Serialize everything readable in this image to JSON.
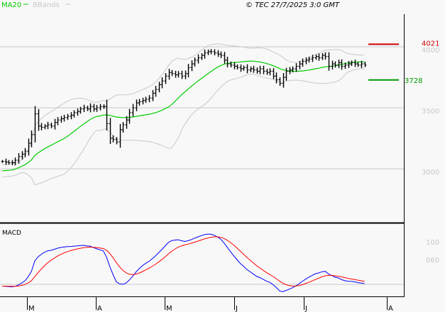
{
  "header": {
    "legend": [
      {
        "label": "MA20",
        "color": "#00cc00"
      },
      {
        "label": "BBands",
        "color": "#c8c8c8"
      }
    ],
    "copyright": "© TEC 27/7/2025 3:0 GMT"
  },
  "colors": {
    "bars": "#000000",
    "ma20": "#00cc00",
    "bbands": "#c8c8c8",
    "macd": "#0000ff",
    "signal": "#ff0000",
    "resistance": "#cc0000",
    "support": "#009900",
    "grid": "#c8c8c8"
  },
  "chart_data": [
    {
      "type": "bar",
      "subtype": "ohlc",
      "ylim": [
        28.5,
        42.5
      ],
      "yticks": [
        {
          "value": 30,
          "label": "3000"
        },
        {
          "value": 35,
          "label": "3500"
        },
        {
          "value": 40,
          "label": "4000"
        }
      ],
      "xticks": [
        "M",
        "A",
        "M",
        "J",
        "J",
        "A"
      ],
      "grid": true,
      "close": [
        30.6,
        30.55,
        30.5,
        30.5,
        30.7,
        31.0,
        31.2,
        31.45,
        32.1,
        32.8,
        34.5,
        33.5,
        33.4,
        33.5,
        33.6,
        33.5,
        33.8,
        34.0,
        34.1,
        34.2,
        34.3,
        34.4,
        34.6,
        34.7,
        34.9,
        35.0,
        34.9,
        35.1,
        34.9,
        35.0,
        35.1,
        35.1,
        33.7,
        32.5,
        32.4,
        32.2,
        33.2,
        33.6,
        34.0,
        34.6,
        35.0,
        35.4,
        35.5,
        35.6,
        35.7,
        35.8,
        36.2,
        36.5,
        36.9,
        37.2,
        37.6,
        37.9,
        37.8,
        37.7,
        37.8,
        37.6,
        37.8,
        38.3,
        38.6,
        38.9,
        39.1,
        39.3,
        39.5,
        39.6,
        39.6,
        39.5,
        39.4,
        39.3,
        38.9,
        38.6,
        38.5,
        38.4,
        38.3,
        38.2,
        38.3,
        38.1,
        38.2,
        38.1,
        38.0,
        38.2,
        38.0,
        37.9,
        38.0,
        37.6,
        37.3,
        37.0,
        37.5,
        38.0,
        38.1,
        38.2,
        38.4,
        38.6,
        38.8,
        38.9,
        39.0,
        39.1,
        39.2,
        39.1,
        39.3,
        39.2,
        38.4,
        38.6,
        38.5,
        38.7,
        38.4,
        38.5,
        38.6,
        38.7,
        38.6,
        38.5,
        38.6,
        38.5
      ],
      "indicators": [
        "MA20",
        "BBands"
      ],
      "levels": [
        {
          "value": 40.21,
          "label": "4021",
          "color": "#cc0000"
        },
        {
          "value": 37.28,
          "label": "3728",
          "color": "#009900"
        }
      ]
    },
    {
      "type": "line",
      "title": "MACD",
      "yticks": [
        {
          "value": 1.0,
          "label": "100"
        },
        {
          "value": 0.6,
          "label": "060"
        }
      ],
      "series": [
        "MACD",
        "Signal"
      ]
    }
  ]
}
